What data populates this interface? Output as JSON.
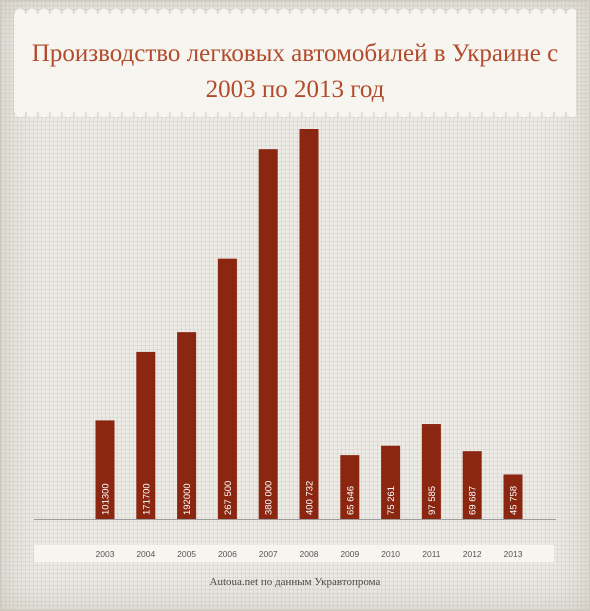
{
  "chart_data": {
    "type": "bar",
    "title": "Производство легковых автомобилей в Украине с 2003 по 2013 год",
    "categories": [
      "2003",
      "2004",
      "2005",
      "2006",
      "2007",
      "2008",
      "2009",
      "2010",
      "2011",
      "2012",
      "2013"
    ],
    "values": [
      101300,
      171700,
      192000,
      267500,
      380000,
      400732,
      65646,
      75261,
      97585,
      69687,
      45758
    ],
    "value_labels": [
      "101300",
      "171700",
      "192000",
      "267 500",
      "380 000",
      "400 732",
      "65 646",
      "75 261",
      "97 585",
      "69 687",
      "45 758"
    ],
    "ylim": [
      0,
      400732
    ],
    "grid": true,
    "legend": "none",
    "colors": {
      "bar": "#8b2610",
      "title": "#b24a2b",
      "axis": "#9c9c9c",
      "label_band": "#f7f5f0"
    }
  },
  "source": "Autoua.net по данным Укравтопрома"
}
